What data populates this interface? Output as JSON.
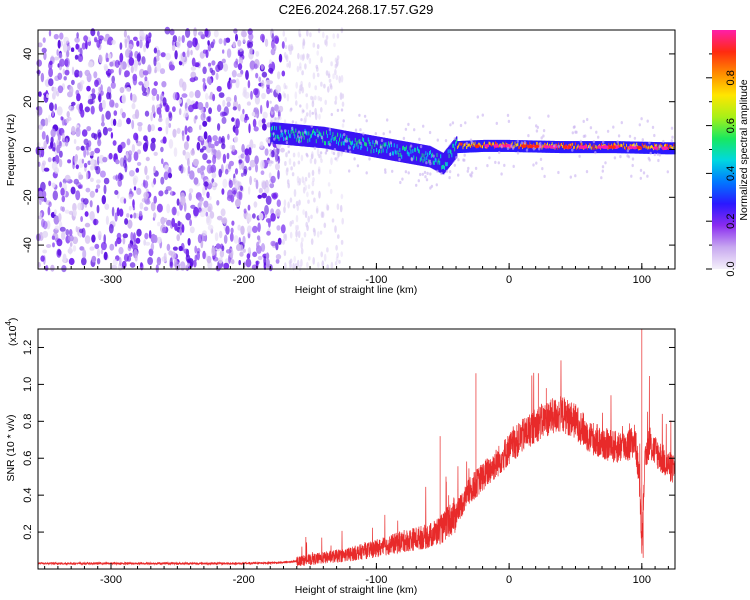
{
  "title": "C2E6.2024.268.17.57.G29",
  "colors": {
    "snr_line": "#e82a2a",
    "axis": "#000000",
    "colormap": [
      "#ffffff",
      "#d9c8f2",
      "#9a56f2",
      "#6010ee",
      "#2a18ff",
      "#0064ff",
      "#00d0e8",
      "#18e860",
      "#9ef018",
      "#ffee00",
      "#ff8800",
      "#ff2200",
      "#ff1ea8"
    ]
  },
  "chart_data": [
    {
      "type": "heatmap",
      "xlabel": "Height of straight line (km)",
      "ylabel": "Frequency (Hz)",
      "xlim": [
        -355,
        125
      ],
      "ylim": [
        -50,
        50
      ],
      "x_ticks": [
        -300,
        -200,
        -100,
        0,
        100
      ],
      "y_ticks": [
        -40,
        -20,
        0,
        20,
        40
      ],
      "colorbar": {
        "label": "Normalized spectral amplitude",
        "range": [
          0,
          1
        ],
        "ticks": [
          "0.0",
          "0.2",
          "0.4",
          "0.6",
          "0.8"
        ],
        "tick_values": [
          0,
          0.2,
          0.4,
          0.6,
          0.8
        ]
      },
      "features": {
        "noise_region_x": [
          -355,
          -170
        ],
        "signal_band_start_x": -180,
        "signal_band_center_hz": [
          [
            -180,
            7
          ],
          [
            -160,
            6
          ],
          [
            -140,
            5
          ],
          [
            -120,
            3
          ],
          [
            -100,
            1
          ],
          [
            -80,
            -1
          ],
          [
            -60,
            -3
          ],
          [
            -50,
            -6
          ],
          [
            -40,
            1
          ],
          [
            -20,
            1.5
          ],
          [
            0,
            1.5
          ],
          [
            40,
            1
          ],
          [
            80,
            1
          ],
          [
            120,
            0.5
          ]
        ]
      }
    },
    {
      "type": "line",
      "xlabel": "Height of straight line (km)",
      "ylabel": "SNR (10 * v/v)",
      "y_multiplier": "(x10",
      "y_multiplier_exp": "4",
      "y_multiplier_close": ")",
      "xlim": [
        -355,
        125
      ],
      "ylim": [
        0,
        1.3
      ],
      "x_ticks": [
        -300,
        -200,
        -100,
        0,
        100
      ],
      "y_ticks": [
        "0.2",
        "0.4",
        "0.6",
        "0.8",
        "1.0",
        "1.2"
      ],
      "y_tick_values": [
        0.2,
        0.4,
        0.6,
        0.8,
        1.0,
        1.2
      ],
      "series": [
        {
          "x": [
            -355,
            -300,
            -250,
            -200,
            -170,
            -150,
            -120,
            -100,
            -80,
            -60,
            -50,
            -40,
            -30,
            -20,
            -10,
            0,
            10,
            20,
            30,
            40,
            50,
            60,
            70,
            80,
            90,
            95,
            98,
            100,
            102,
            105,
            110,
            120,
            125
          ],
          "values": [
            0.03,
            0.03,
            0.03,
            0.03,
            0.035,
            0.05,
            0.08,
            0.11,
            0.15,
            0.18,
            0.22,
            0.3,
            0.42,
            0.5,
            0.57,
            0.65,
            0.72,
            0.78,
            0.82,
            0.84,
            0.8,
            0.72,
            0.68,
            0.66,
            0.67,
            0.7,
            0.5,
            0.12,
            0.55,
            0.68,
            0.64,
            0.56,
            0.53
          ],
          "spikes": [
            [
              100,
              1.3
            ],
            [
              101,
              0.06
            ],
            [
              -25,
              1.06
            ],
            [
              22,
              1.06
            ],
            [
              28,
              0.98
            ],
            [
              -52,
              0.72
            ]
          ]
        }
      ]
    }
  ]
}
